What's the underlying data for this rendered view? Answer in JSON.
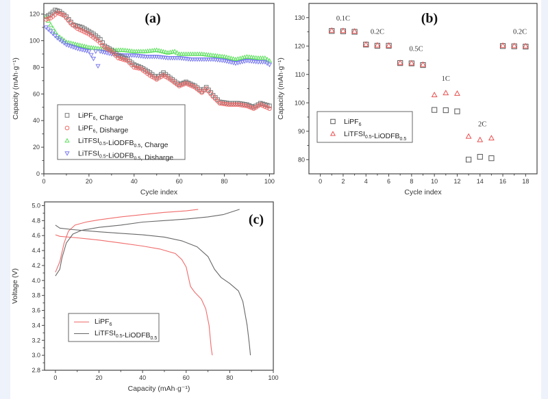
{
  "colors": {
    "charge_lipf6": "#777777",
    "discharge_lipf6": "#f06a6a",
    "charge_litfsi": "#5ee05e",
    "discharge_litfsi": "#7a7af0",
    "line_lipf6": "#f06a6a",
    "line_litfsi": "#666666",
    "rate_lipf6": "#555555",
    "rate_litfsi": "#e85050"
  },
  "chart_data": [
    {
      "id": "a",
      "type": "scatter",
      "panel_label": "(a)",
      "xlabel": "Cycle index",
      "ylabel": "Capacity (mAh·g⁻¹)",
      "xlim": [
        0,
        102
      ],
      "ylim": [
        0,
        128
      ],
      "xticks": [
        0,
        20,
        40,
        60,
        80,
        100
      ],
      "yticks": [
        0,
        20,
        40,
        60,
        80,
        100,
        120
      ],
      "legend_position": "center-left",
      "series": [
        {
          "name": "LiPF6, Charge",
          "key": "charge_lipf6",
          "marker": "square",
          "keypoints": [
            [
              1,
              118
            ],
            [
              3,
              120
            ],
            [
              5,
              123
            ],
            [
              7,
              122
            ],
            [
              10,
              118
            ],
            [
              13,
              112
            ],
            [
              17,
              110
            ],
            [
              22,
              105
            ],
            [
              25,
              101
            ],
            [
              27,
              96
            ],
            [
              30,
              93
            ],
            [
              33,
              89
            ],
            [
              37,
              86
            ],
            [
              40,
              82
            ],
            [
              43,
              80
            ],
            [
              47,
              76
            ],
            [
              50,
              72
            ],
            [
              53,
              76
            ],
            [
              56,
              72
            ],
            [
              60,
              67
            ],
            [
              63,
              69
            ],
            [
              67,
              66
            ],
            [
              70,
              62
            ],
            [
              72,
              65
            ],
            [
              75,
              59
            ],
            [
              78,
              54
            ],
            [
              82,
              53
            ],
            [
              86,
              53
            ],
            [
              90,
              52
            ],
            [
              93,
              50
            ],
            [
              96,
              53
            ],
            [
              100,
              51
            ]
          ]
        },
        {
          "name": "LiPF6, Disharge",
          "key": "discharge_lipf6",
          "marker": "circle",
          "keypoints": [
            [
              1,
              116
            ],
            [
              3,
              117
            ],
            [
              6,
              121
            ],
            [
              9,
              119
            ],
            [
              12,
              113
            ],
            [
              15,
              109
            ],
            [
              20,
              105
            ],
            [
              24,
              100
            ],
            [
              27,
              95
            ],
            [
              30,
              92
            ],
            [
              33,
              87
            ],
            [
              37,
              85
            ],
            [
              40,
              80
            ],
            [
              43,
              79
            ],
            [
              47,
              74
            ],
            [
              50,
              71
            ],
            [
              53,
              74
            ],
            [
              56,
              71
            ],
            [
              60,
              66
            ],
            [
              63,
              68
            ],
            [
              67,
              65
            ],
            [
              70,
              61
            ],
            [
              72,
              64
            ],
            [
              75,
              58
            ],
            [
              78,
              53
            ],
            [
              82,
              52
            ],
            [
              86,
              52
            ],
            [
              90,
              51
            ],
            [
              93,
              49
            ],
            [
              96,
              52
            ],
            [
              100,
              49
            ]
          ]
        },
        {
          "name": "LiTFSI0.5-LiODFB0.5, Charge",
          "key": "charge_litfsi",
          "marker": "triangle-up",
          "keypoints": [
            [
              1,
              118
            ],
            [
              3,
              112
            ],
            [
              6,
              104
            ],
            [
              10,
              99
            ],
            [
              15,
              97
            ],
            [
              20,
              95
            ],
            [
              25,
              94
            ],
            [
              30,
              93
            ],
            [
              35,
              93
            ],
            [
              40,
              92
            ],
            [
              45,
              92
            ],
            [
              50,
              93
            ],
            [
              55,
              91
            ],
            [
              58,
              92
            ],
            [
              60,
              90
            ],
            [
              65,
              90
            ],
            [
              70,
              90
            ],
            [
              75,
              89
            ],
            [
              80,
              88
            ],
            [
              85,
              86
            ],
            [
              90,
              88
            ],
            [
              95,
              87
            ],
            [
              98,
              87
            ],
            [
              100,
              85
            ]
          ]
        },
        {
          "name": "LiTFSI0.5-LiODFB0.5, Disharge",
          "key": "discharge_litfsi",
          "marker": "triangle-down",
          "keypoints": [
            [
              1,
              110
            ],
            [
              3,
              107
            ],
            [
              6,
              102
            ],
            [
              10,
              97
            ],
            [
              15,
              94
            ],
            [
              20,
              92
            ],
            [
              24,
              81
            ],
            [
              25,
              92
            ],
            [
              30,
              90
            ],
            [
              35,
              89
            ],
            [
              40,
              89
            ],
            [
              45,
              88
            ],
            [
              50,
              88
            ],
            [
              55,
              87
            ],
            [
              60,
              87
            ],
            [
              65,
              86
            ],
            [
              70,
              86
            ],
            [
              75,
              86
            ],
            [
              80,
              85
            ],
            [
              85,
              83
            ],
            [
              90,
              85
            ],
            [
              95,
              84
            ],
            [
              98,
              84
            ],
            [
              100,
              82
            ]
          ]
        }
      ]
    },
    {
      "id": "b",
      "type": "scatter",
      "panel_label": "(b)",
      "xlabel": "Cycle index",
      "ylabel": "Capacity (mAh·g⁻¹)",
      "xlim": [
        -1,
        19
      ],
      "ylim": [
        75,
        135
      ],
      "xticks": [
        0,
        2,
        4,
        6,
        8,
        10,
        12,
        14,
        16,
        18
      ],
      "yticks": [
        80,
        90,
        100,
        110,
        120,
        130
      ],
      "legend_position": "center-left",
      "annotations": [
        {
          "text": "0.1C",
          "x": 2,
          "y": 129
        },
        {
          "text": "0.2C",
          "x": 5,
          "y": 124.3
        },
        {
          "text": "0.5C",
          "x": 8.4,
          "y": 118.2
        },
        {
          "text": "1C",
          "x": 11,
          "y": 107.8
        },
        {
          "text": "2C",
          "x": 14.2,
          "y": 91.8
        },
        {
          "text": "0.2C",
          "x": 17.5,
          "y": 124.3
        }
      ],
      "series": [
        {
          "name": "LiPF6",
          "key": "rate_lipf6",
          "marker": "square",
          "x": [
            1,
            2,
            3,
            4,
            5,
            6,
            7,
            8,
            9,
            10,
            11,
            12,
            13,
            14,
            15,
            16,
            17,
            18
          ],
          "y": [
            125.3,
            125.2,
            125.0,
            120.5,
            120.1,
            120.1,
            114.0,
            113.9,
            113.3,
            97.5,
            97.4,
            97.0,
            80.0,
            81.0,
            80.5,
            120.0,
            119.9,
            119.8
          ]
        },
        {
          "name": "LiTFSI0.5-LiODFB0.5",
          "key": "rate_litfsi",
          "marker": "triangle-up",
          "x": [
            1,
            2,
            3,
            4,
            5,
            6,
            7,
            8,
            9,
            10,
            11,
            12,
            13,
            14,
            15,
            16,
            17,
            18
          ],
          "y": [
            125.5,
            125.4,
            125.2,
            120.6,
            120.3,
            120.2,
            114.1,
            114.0,
            113.5,
            102.8,
            103.5,
            103.3,
            88.2,
            87.0,
            87.6,
            120.2,
            120.1,
            120.0
          ]
        }
      ]
    },
    {
      "id": "c",
      "type": "line",
      "panel_label": "(c)",
      "xlabel": "Capacity (mAh·g⁻¹)",
      "ylabel": "Voltage (V)",
      "xlim": [
        -5,
        100
      ],
      "ylim": [
        2.8,
        5.05
      ],
      "xticks": [
        0,
        20,
        40,
        60,
        80,
        100
      ],
      "yticks": [
        2.8,
        3.0,
        3.2,
        3.4,
        3.6,
        3.8,
        4.0,
        4.2,
        4.4,
        4.6,
        4.8,
        5.0
      ],
      "legend_position": "bottom-left",
      "series": [
        {
          "name": "LiPF6",
          "key": "line_lipf6",
          "segments": [
            [
              [
                0,
                4.11
              ],
              [
                2,
                4.25
              ],
              [
                4,
                4.5
              ],
              [
                6,
                4.66
              ],
              [
                9,
                4.74
              ],
              [
                14,
                4.78
              ],
              [
                20,
                4.81
              ],
              [
                30,
                4.85
              ],
              [
                40,
                4.88
              ],
              [
                50,
                4.91
              ],
              [
                60,
                4.93
              ],
              [
                65.5,
                4.95
              ]
            ],
            [
              [
                0,
                4.61
              ],
              [
                2,
                4.59
              ],
              [
                10,
                4.57
              ],
              [
                20,
                4.54
              ],
              [
                30,
                4.5
              ],
              [
                40,
                4.46
              ],
              [
                48,
                4.42
              ],
              [
                55,
                4.36
              ],
              [
                58,
                4.28
              ],
              [
                60,
                4.18
              ],
              [
                61,
                4.05
              ],
              [
                62,
                3.92
              ],
              [
                64,
                3.84
              ],
              [
                67,
                3.75
              ],
              [
                69,
                3.62
              ],
              [
                70.5,
                3.4
              ],
              [
                71.5,
                3.1
              ],
              [
                72,
                3.0
              ]
            ]
          ]
        },
        {
          "name": "LiTFSI0.5-LiODFB0.5",
          "key": "line_litfsi",
          "segments": [
            [
              [
                0,
                4.06
              ],
              [
                2,
                4.15
              ],
              [
                3,
                4.3
              ],
              [
                5,
                4.5
              ],
              [
                8,
                4.62
              ],
              [
                12,
                4.67
              ],
              [
                20,
                4.71
              ],
              [
                30,
                4.74
              ],
              [
                40,
                4.78
              ],
              [
                50,
                4.8
              ],
              [
                60,
                4.82
              ],
              [
                70,
                4.85
              ],
              [
                77,
                4.88
              ],
              [
                84.5,
                4.95
              ]
            ],
            [
              [
                0,
                4.74
              ],
              [
                2,
                4.7
              ],
              [
                8,
                4.68
              ],
              [
                20,
                4.65
              ],
              [
                30,
                4.63
              ],
              [
                40,
                4.61
              ],
              [
                50,
                4.58
              ],
              [
                58,
                4.53
              ],
              [
                65,
                4.45
              ],
              [
                70,
                4.32
              ],
              [
                73,
                4.15
              ],
              [
                76,
                4.04
              ],
              [
                80,
                3.96
              ],
              [
                84,
                3.86
              ],
              [
                86,
                3.72
              ],
              [
                88,
                3.4
              ],
              [
                89,
                3.15
              ],
              [
                89.5,
                3.0
              ]
            ]
          ]
        }
      ]
    }
  ],
  "legends": {
    "a": [
      {
        "main": "LiPF",
        "sub1": "6",
        "tail": ", Charge"
      },
      {
        "main": "LiPF",
        "sub1": "6",
        "tail": ", Disharge"
      },
      {
        "main": "LiTFSI",
        "sub1": "0.5",
        "mid": "-LiODFB",
        "sub2": "0.5",
        "tail": ", Charge"
      },
      {
        "main": "LiTFSI",
        "sub1": "0.5",
        "mid": "-LiODFB",
        "sub2": "0.5",
        "tail": ", Disharge"
      }
    ],
    "b": [
      {
        "main": "LiPF",
        "sub1": "6",
        "tail": ""
      },
      {
        "main": "LiTFSI",
        "sub1": "0.5",
        "mid": "-LiODFB",
        "sub2": "0.5",
        "tail": ""
      }
    ],
    "c": [
      {
        "main": "LiPF",
        "sub1": "6",
        "tail": ""
      },
      {
        "main": "LiTFSI",
        "sub1": "0.5",
        "mid": "-LiODFB",
        "sub2": "0.5",
        "tail": ""
      }
    ]
  }
}
